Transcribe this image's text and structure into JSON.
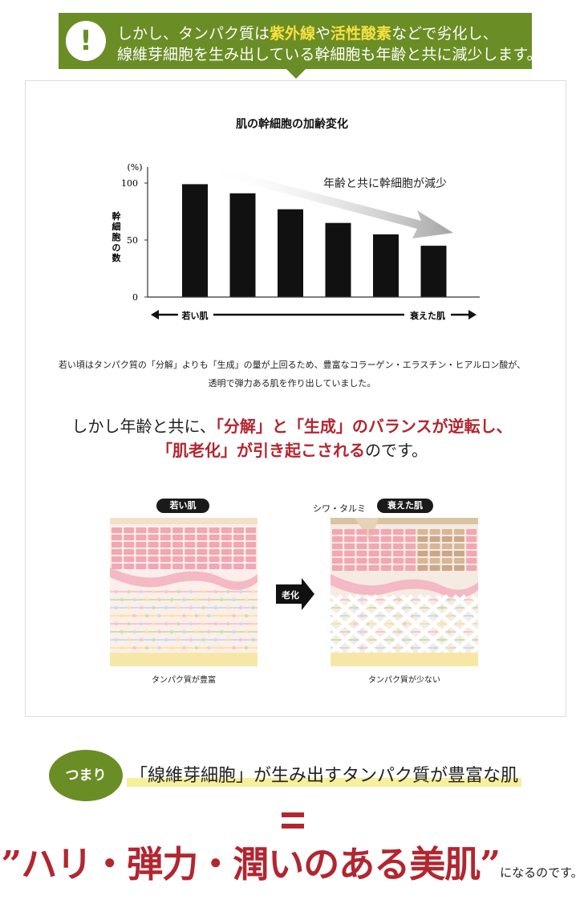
{
  "banner": {
    "line1_pre": "しかし、タンパク質は",
    "line1_hl1": "紫外線",
    "line1_mid": "や",
    "line1_hl2": "活性酸素",
    "line1_post": "などで劣化し、",
    "line2": "線維芽細胞を生み出している幹細胞も年齢と共に減少します。",
    "icon": "exclamation-icon",
    "colors": {
      "green": "#6b8d25",
      "highlight": "#f5e042"
    }
  },
  "chart_data": {
    "type": "bar",
    "title": "肌の幹細胞の加齢変化",
    "unit": "(%)",
    "ylabel": "幹細胞の数",
    "yticks": [
      0,
      50,
      100
    ],
    "ylim": [
      0,
      110
    ],
    "values": [
      99,
      91,
      77,
      65,
      55,
      45
    ],
    "bar_color": "#111111",
    "annotation": "年齢と共に幹細胞が減少",
    "x_start_label": "若い肌",
    "x_end_label": "衰えた肌"
  },
  "description": {
    "line1": "若い頃はタンパク質の「分解」よりも「生成」の量が上回るため、豊富なコラーゲン・エラスチン・ヒアルロン酸が、",
    "line2": "透明で弾力ある肌を作り出していました。"
  },
  "lead": {
    "line1_pre": "しかし年齢と共に、",
    "line1_red": "「分解」と「生成」のバランスが逆転し、",
    "line2_red": "「肌老化」が引き起こされる",
    "line2_post": "のです。"
  },
  "illustration": {
    "young_label": "若い肌",
    "aged_label": "衰えた肌",
    "arrow_label": "老化",
    "callout": "シワ・タルミ",
    "young_caption": "タンパク質が豊富",
    "aged_caption": "タンパク質が少ない"
  },
  "summary": {
    "badge": "つまり",
    "text": "「線維芽細胞」が生み出すタンパク質が豊富な肌",
    "big": "”ハリ・弾力・潤いのある美肌”",
    "tail": "になるのです。",
    "colors": {
      "red": "#b22630",
      "underline": "#f7ef9a"
    }
  }
}
